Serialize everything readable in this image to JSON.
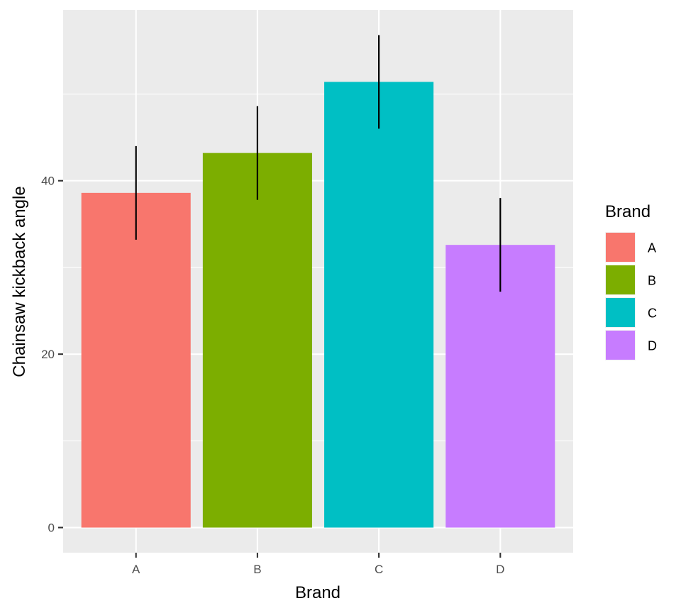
{
  "chart_data": {
    "type": "bar",
    "categories": [
      "A",
      "B",
      "C",
      "D"
    ],
    "values": [
      38.6,
      43.2,
      51.4,
      32.6
    ],
    "error_bars": [
      [
        33.2,
        44.0
      ],
      [
        37.8,
        48.6
      ],
      [
        46.0,
        56.8
      ],
      [
        27.2,
        38.0
      ]
    ],
    "colors": [
      "#F8766D",
      "#7CAE00",
      "#00BFC4",
      "#C77CFF"
    ],
    "xlabel": "Brand",
    "ylabel": "Chainsaw kickback angle",
    "ylim": [
      -2.9,
      59.7
    ],
    "yticks": [
      0,
      20,
      40
    ],
    "ytick_labels": [
      "0",
      "20",
      "40"
    ],
    "grid": true,
    "legend": {
      "title": "Brand",
      "items": [
        "A",
        "B",
        "C",
        "D"
      ],
      "position": "right"
    }
  }
}
